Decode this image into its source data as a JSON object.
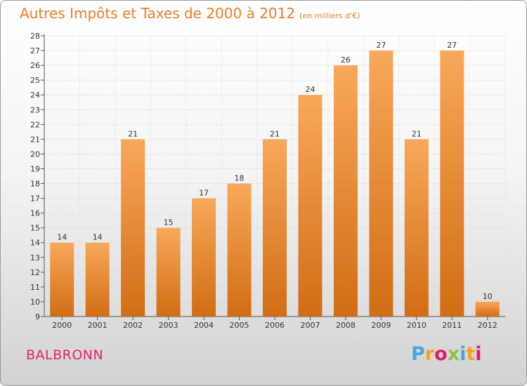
{
  "header": {
    "title": "Autres Impôts et Taxes de 2000 à 2012",
    "subtitle": "(en milliers d'€)"
  },
  "footer": {
    "commune": "BALBRONN",
    "logo_text": "Proxiti",
    "logo_colors": [
      "#3fa9e0",
      "#f7a21b",
      "#e31b6e",
      "#8cc63f",
      "#3fa9e0",
      "#f7a21b",
      "#e31b6e"
    ]
  },
  "colors": {
    "bar_top": "#f8a85a",
    "bar_bottom": "#d16d14",
    "title": "#ef7d23",
    "commune": "#e0266e"
  },
  "chart_data": {
    "type": "bar",
    "categories": [
      "2000",
      "2001",
      "2002",
      "2003",
      "2004",
      "2005",
      "2006",
      "2007",
      "2008",
      "2009",
      "2010",
      "2011",
      "2012"
    ],
    "values": [
      14,
      14,
      21,
      15,
      17,
      18,
      21,
      24,
      26,
      27,
      21,
      27,
      10
    ],
    "data_labels": [
      "14",
      "14",
      "21",
      "15",
      "17",
      "18",
      "21",
      "24",
      "26",
      "27",
      "21",
      "27",
      "10"
    ],
    "ylim": [
      9,
      28
    ],
    "yticks": [
      "9",
      "10",
      "11",
      "12",
      "13",
      "14",
      "15",
      "16",
      "17",
      "18",
      "19",
      "20",
      "21",
      "22",
      "23",
      "24",
      "25",
      "26",
      "27",
      "28"
    ],
    "grid": true,
    "legend": "none"
  }
}
